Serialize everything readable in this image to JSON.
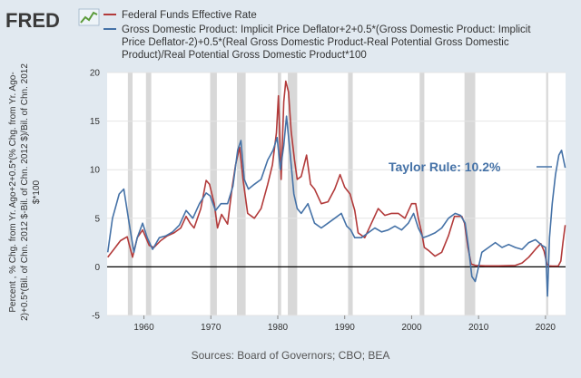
{
  "brand": {
    "logo_text": "FRED"
  },
  "chart_data": {
    "type": "line",
    "title": "",
    "ylabel_lines": [
      "Percent , % Chg. from Yr. Ago+2+0.5*(% Chg. from Yr. Ago-",
      "2)+0.5*(Bil. of Chn. 2012 $-Bil. of Chn. 2012 $)/Bil. of Chn. 2012",
      "$*100"
    ],
    "source_note": "Sources: Board of Governors; CBO; BEA",
    "annotation": "Taylor Rule: 10.2%",
    "xlim": [
      1954.5,
      2023.0
    ],
    "ylim": [
      -5,
      20
    ],
    "yticks": [
      -5,
      0,
      5,
      10,
      15,
      20
    ],
    "xticks": [
      1960,
      1970,
      1980,
      1990,
      2000,
      2010,
      2020
    ],
    "recessions": [
      [
        1957.6,
        1958.3
      ],
      [
        1960.3,
        1961.1
      ],
      [
        1969.9,
        1970.9
      ],
      [
        1973.9,
        1975.2
      ],
      [
        1980.0,
        1980.5
      ],
      [
        1981.5,
        1982.9
      ],
      [
        1990.5,
        1991.2
      ],
      [
        2001.2,
        2001.9
      ],
      [
        2007.9,
        2009.5
      ],
      [
        2020.1,
        2020.4
      ]
    ],
    "series": [
      {
        "name": "Federal Funds Effective Rate",
        "color": "#b23a3a",
        "x": [
          1954.6,
          1955.5,
          1956.5,
          1957.5,
          1958.3,
          1959.0,
          1959.8,
          1960.8,
          1961.5,
          1962.5,
          1963.5,
          1964.5,
          1965.5,
          1966.3,
          1966.9,
          1967.5,
          1968.5,
          1969.3,
          1969.8,
          1970.5,
          1971.0,
          1971.6,
          1972.5,
          1973.2,
          1973.7,
          1974.3,
          1974.8,
          1975.5,
          1976.5,
          1977.5,
          1978.5,
          1979.2,
          1979.8,
          1980.1,
          1980.5,
          1980.9,
          1981.2,
          1981.6,
          1982.0,
          1982.5,
          1982.9,
          1983.5,
          1984.3,
          1984.9,
          1985.5,
          1986.5,
          1987.5,
          1988.5,
          1989.3,
          1990.0,
          1990.8,
          1991.5,
          1992.0,
          1993.0,
          1994.0,
          1995.0,
          1996.0,
          1997.0,
          1998.0,
          1999.0,
          2000.0,
          2000.6,
          2001.0,
          2001.5,
          2001.9,
          2002.5,
          2003.5,
          2004.5,
          2005.5,
          2006.4,
          2007.5,
          2007.9,
          2008.4,
          2008.9,
          2009.5,
          2011.0,
          2013.0,
          2015.5,
          2016.5,
          2017.5,
          2018.5,
          2019.3,
          2019.8,
          2020.2,
          2020.5,
          2021.0,
          2021.9,
          2022.3,
          2022.6,
          2022.95
        ],
        "values": [
          1.0,
          1.8,
          2.7,
          3.1,
          1.0,
          3.0,
          3.8,
          2.2,
          2.0,
          2.7,
          3.2,
          3.5,
          4.0,
          5.2,
          4.5,
          4.0,
          6.0,
          8.9,
          8.5,
          6.5,
          4.0,
          5.4,
          4.4,
          8.3,
          10.5,
          12.3,
          9.0,
          5.5,
          5.0,
          6.0,
          8.5,
          10.5,
          13.8,
          17.6,
          9.0,
          17.0,
          19.1,
          18.0,
          14.0,
          11.0,
          9.0,
          9.3,
          11.5,
          8.5,
          8.0,
          6.5,
          6.7,
          8.0,
          9.5,
          8.2,
          7.5,
          5.8,
          3.5,
          3.0,
          4.5,
          6.0,
          5.3,
          5.5,
          5.5,
          5.0,
          6.5,
          6.5,
          5.0,
          3.5,
          2.0,
          1.7,
          1.1,
          1.5,
          3.2,
          5.2,
          5.2,
          4.5,
          2.0,
          0.3,
          0.15,
          0.1,
          0.1,
          0.15,
          0.4,
          1.0,
          1.8,
          2.4,
          1.6,
          0.3,
          0.1,
          0.08,
          0.08,
          0.6,
          2.5,
          4.3
        ]
      },
      {
        "name": "Gross Domestic Product: Implicit Price Deflator+2+0.5*(Gross Domestic Product: Implicit Price Deflator-2)+0.5*(Real Gross Domestic Product-Real Potential Gross Domestic Product)/Real Potential Gross Domestic Product*100",
        "legend_lines": [
          "Gross Domestic Product: Implicit Price Deflator+2+0.5*(Gross Domestic Product: Implicit",
          "Price Deflator-2)+0.5*(Real Gross Domestic Product-Real Potential Gross Domestic",
          "Product)/Real Potential Gross Domestic Product*100"
        ],
        "color": "#4572a7",
        "x": [
          1954.6,
          1955.3,
          1956.3,
          1957.0,
          1957.9,
          1958.5,
          1959.0,
          1959.8,
          1960.5,
          1961.3,
          1962.3,
          1963.3,
          1964.3,
          1965.3,
          1966.3,
          1967.3,
          1968.3,
          1969.3,
          1969.9,
          1970.7,
          1971.5,
          1972.5,
          1973.3,
          1974.0,
          1974.5,
          1975.0,
          1975.6,
          1976.5,
          1977.5,
          1978.5,
          1979.3,
          1979.9,
          1980.4,
          1980.9,
          1981.3,
          1981.8,
          1982.4,
          1982.9,
          1983.5,
          1984.5,
          1985.5,
          1986.5,
          1987.5,
          1988.5,
          1989.5,
          1990.3,
          1990.9,
          1991.5,
          1992.5,
          1993.5,
          1994.5,
          1995.5,
          1996.5,
          1997.5,
          1998.5,
          1999.5,
          2000.3,
          2001.0,
          2001.7,
          2002.5,
          2003.5,
          2004.5,
          2005.5,
          2006.5,
          2007.3,
          2008.0,
          2008.5,
          2009.0,
          2009.5,
          2010.5,
          2011.5,
          2012.5,
          2013.5,
          2014.5,
          2015.5,
          2016.5,
          2017.5,
          2018.5,
          2019.5,
          2020.0,
          2020.3,
          2020.6,
          2021.0,
          2021.5,
          2022.0,
          2022.4,
          2022.95
        ],
        "values": [
          1.5,
          5.0,
          7.5,
          8.0,
          4.0,
          1.5,
          3.0,
          4.5,
          3.0,
          1.8,
          3.0,
          3.2,
          3.6,
          4.3,
          5.8,
          5.0,
          6.5,
          7.6,
          7.3,
          5.8,
          6.5,
          6.5,
          8.3,
          12.0,
          13.0,
          9.0,
          8.0,
          8.5,
          9.0,
          11.0,
          12.0,
          13.3,
          10.0,
          12.5,
          15.5,
          12.0,
          7.5,
          6.0,
          5.5,
          6.5,
          4.5,
          4.0,
          4.5,
          5.0,
          5.5,
          4.2,
          3.8,
          3.0,
          3.0,
          3.5,
          4.0,
          3.6,
          3.8,
          4.2,
          3.8,
          4.5,
          5.5,
          4.0,
          3.0,
          3.2,
          3.5,
          4.0,
          5.0,
          5.5,
          5.3,
          4.5,
          2.0,
          -1.0,
          -1.5,
          1.5,
          2.0,
          2.5,
          2.0,
          2.3,
          2.0,
          1.8,
          2.5,
          2.8,
          2.2,
          2.0,
          -3.0,
          3.0,
          6.5,
          9.5,
          11.5,
          12.0,
          10.2
        ]
      }
    ]
  }
}
